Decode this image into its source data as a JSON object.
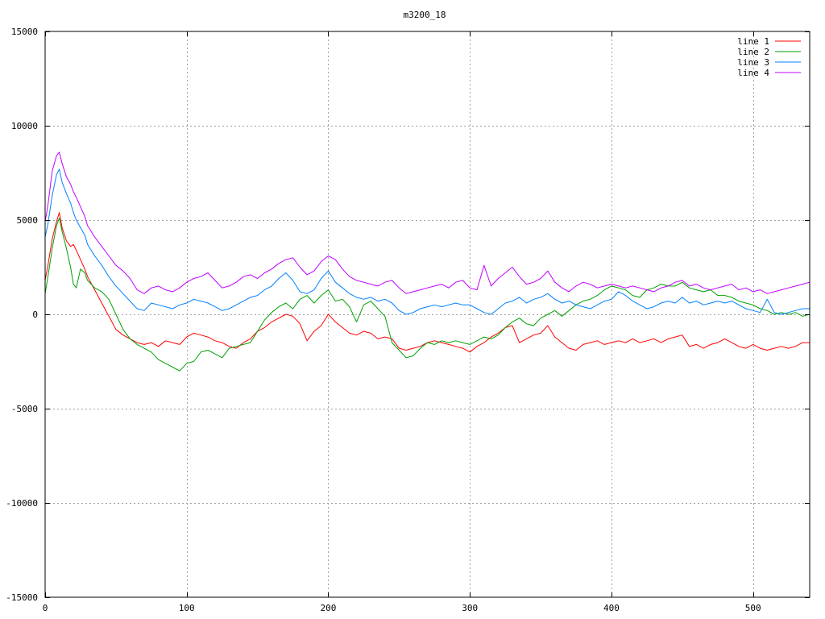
{
  "chart_data": {
    "type": "line",
    "title": "m3200_18",
    "xlabel": "",
    "ylabel": "",
    "xlim": [
      0,
      540
    ],
    "ylim": [
      -15000,
      15000
    ],
    "xticks": [
      0,
      100,
      200,
      300,
      400,
      500
    ],
    "xtick_labels": [
      "0",
      "100",
      "200",
      "300",
      "400",
      "500"
    ],
    "yticks": [
      -15000,
      -10000,
      -5000,
      0,
      5000,
      10000,
      15000
    ],
    "ytick_labels": [
      "-15000",
      "-10000",
      "-5000",
      "0",
      "5000",
      "10000",
      "15000"
    ],
    "grid": true,
    "legend_position": "top-right",
    "series": [
      {
        "name": "line 1",
        "color": "#ff0000",
        "x": [
          0,
          2,
          5,
          8,
          10,
          12,
          15,
          18,
          20,
          22,
          25,
          28,
          30,
          35,
          40,
          45,
          50,
          55,
          60,
          65,
          70,
          75,
          80,
          85,
          90,
          95,
          100,
          105,
          110,
          115,
          120,
          125,
          130,
          135,
          140,
          145,
          150,
          155,
          160,
          165,
          170,
          175,
          180,
          185,
          190,
          195,
          200,
          205,
          210,
          215,
          220,
          225,
          230,
          235,
          240,
          245,
          250,
          255,
          260,
          265,
          270,
          275,
          280,
          285,
          290,
          295,
          300,
          305,
          310,
          315,
          320,
          325,
          330,
          335,
          340,
          345,
          350,
          355,
          360,
          365,
          370,
          375,
          380,
          385,
          390,
          395,
          400,
          405,
          410,
          415,
          420,
          425,
          430,
          435,
          440,
          445,
          450,
          455,
          460,
          465,
          470,
          475,
          480,
          485,
          490,
          495,
          500,
          505,
          510,
          515,
          520,
          525,
          530,
          535,
          540
        ],
        "values": [
          1800,
          2600,
          4000,
          4900,
          5400,
          4600,
          3900,
          3600,
          3700,
          3400,
          2900,
          2400,
          2000,
          1300,
          600,
          -100,
          -800,
          -1100,
          -1300,
          -1500,
          -1600,
          -1500,
          -1700,
          -1400,
          -1500,
          -1600,
          -1200,
          -1000,
          -1100,
          -1200,
          -1400,
          -1500,
          -1700,
          -1800,
          -1500,
          -1300,
          -900,
          -700,
          -400,
          -200,
          0,
          -100,
          -500,
          -1400,
          -900,
          -600,
          0,
          -400,
          -700,
          -1000,
          -1100,
          -900,
          -1000,
          -1300,
          -1200,
          -1300,
          -1800,
          -1900,
          -1800,
          -1700,
          -1500,
          -1400,
          -1500,
          -1600,
          -1700,
          -1800,
          -2000,
          -1700,
          -1500,
          -1200,
          -1000,
          -700,
          -600,
          -1500,
          -1300,
          -1100,
          -1000,
          -600,
          -1200,
          -1500,
          -1800,
          -1900,
          -1600,
          -1500,
          -1400,
          -1600,
          -1500,
          -1400,
          -1500,
          -1300,
          -1500,
          -1400,
          -1300,
          -1500,
          -1300,
          -1200,
          -1100,
          -1700,
          -1600,
          -1800,
          -1600,
          -1500,
          -1300,
          -1500,
          -1700,
          -1800,
          -1600,
          -1800,
          -1900,
          -1800,
          -1700,
          -1800,
          -1700,
          -1500,
          -1500
        ]
      },
      {
        "name": "line 2",
        "color": "#00a000",
        "x": [
          0,
          2,
          5,
          8,
          10,
          12,
          15,
          18,
          20,
          22,
          25,
          28,
          30,
          35,
          40,
          45,
          50,
          55,
          60,
          65,
          70,
          75,
          80,
          85,
          90,
          95,
          100,
          105,
          110,
          115,
          120,
          125,
          130,
          135,
          140,
          145,
          150,
          155,
          160,
          165,
          170,
          175,
          180,
          185,
          190,
          195,
          200,
          205,
          210,
          215,
          220,
          225,
          230,
          235,
          240,
          245,
          250,
          255,
          260,
          265,
          270,
          275,
          280,
          285,
          290,
          295,
          300,
          305,
          310,
          315,
          320,
          325,
          330,
          335,
          340,
          345,
          350,
          355,
          360,
          365,
          370,
          375,
          380,
          385,
          390,
          395,
          400,
          405,
          410,
          415,
          420,
          425,
          430,
          435,
          440,
          445,
          450,
          455,
          460,
          465,
          470,
          475,
          480,
          485,
          490,
          495,
          500,
          505,
          510,
          515,
          520,
          525,
          530,
          535,
          540
        ],
        "values": [
          1100,
          2000,
          3500,
          4700,
          5100,
          4400,
          3500,
          2500,
          1600,
          1400,
          2400,
          2200,
          1800,
          1400,
          1200,
          800,
          0,
          -800,
          -1300,
          -1600,
          -1800,
          -2000,
          -2400,
          -2600,
          -2800,
          -3000,
          -2600,
          -2500,
          -2000,
          -1900,
          -2100,
          -2300,
          -1800,
          -1700,
          -1600,
          -1500,
          -900,
          -300,
          100,
          400,
          600,
          300,
          800,
          1000,
          600,
          1000,
          1300,
          700,
          800,
          400,
          -400,
          500,
          700,
          300,
          -100,
          -1500,
          -1900,
          -2300,
          -2200,
          -1800,
          -1500,
          -1600,
          -1400,
          -1500,
          -1400,
          -1500,
          -1600,
          -1400,
          -1200,
          -1300,
          -1100,
          -700,
          -400,
          -200,
          -500,
          -600,
          -200,
          0,
          200,
          -100,
          200,
          500,
          700,
          800,
          1000,
          1300,
          1500,
          1400,
          1300,
          1000,
          900,
          1300,
          1400,
          1600,
          1500,
          1500,
          1700,
          1400,
          1300,
          1200,
          1300,
          1000,
          1000,
          900,
          700,
          600,
          500,
          300,
          200,
          0,
          100,
          0,
          100,
          -100,
          0
        ]
      },
      {
        "name": "line 3",
        "color": "#0080ff",
        "x": [
          0,
          2,
          5,
          8,
          10,
          12,
          15,
          18,
          20,
          22,
          25,
          28,
          30,
          35,
          40,
          45,
          50,
          55,
          60,
          65,
          70,
          75,
          80,
          85,
          90,
          95,
          100,
          105,
          110,
          115,
          120,
          125,
          130,
          135,
          140,
          145,
          150,
          155,
          160,
          165,
          170,
          175,
          180,
          185,
          190,
          195,
          200,
          205,
          210,
          215,
          220,
          225,
          230,
          235,
          240,
          245,
          250,
          255,
          260,
          265,
          270,
          275,
          280,
          285,
          290,
          295,
          300,
          305,
          310,
          315,
          320,
          325,
          330,
          335,
          340,
          345,
          350,
          355,
          360,
          365,
          370,
          375,
          380,
          385,
          390,
          395,
          400,
          405,
          410,
          415,
          420,
          425,
          430,
          435,
          440,
          445,
          450,
          455,
          460,
          465,
          470,
          475,
          480,
          485,
          490,
          495,
          500,
          505,
          510,
          515,
          520,
          525,
          530,
          535,
          540
        ],
        "values": [
          4100,
          4800,
          6300,
          7400,
          7700,
          7000,
          6400,
          5900,
          5400,
          5000,
          4600,
          4200,
          3700,
          3100,
          2600,
          2000,
          1500,
          1100,
          700,
          300,
          200,
          600,
          500,
          400,
          300,
          500,
          600,
          800,
          700,
          600,
          400,
          200,
          300,
          500,
          700,
          900,
          1000,
          1300,
          1500,
          1900,
          2200,
          1800,
          1200,
          1100,
          1300,
          1900,
          2300,
          1700,
          1400,
          1100,
          900,
          800,
          900,
          700,
          800,
          600,
          200,
          0,
          100,
          300,
          400,
          500,
          400,
          500,
          600,
          500,
          500,
          300,
          100,
          0,
          300,
          600,
          700,
          900,
          600,
          800,
          900,
          1100,
          800,
          600,
          700,
          500,
          400,
          300,
          500,
          700,
          800,
          1200,
          1000,
          700,
          500,
          300,
          400,
          600,
          700,
          600,
          900,
          600,
          700,
          500,
          600,
          700,
          600,
          700,
          500,
          300,
          200,
          100,
          800,
          100,
          0,
          100,
          200,
          300,
          300
        ]
      },
      {
        "name": "line 4",
        "color": "#c000ff",
        "x": [
          0,
          2,
          5,
          8,
          10,
          12,
          15,
          18,
          20,
          22,
          25,
          28,
          30,
          35,
          40,
          45,
          50,
          55,
          60,
          65,
          70,
          75,
          80,
          85,
          90,
          95,
          100,
          105,
          110,
          115,
          120,
          125,
          130,
          135,
          140,
          145,
          150,
          155,
          160,
          165,
          170,
          175,
          180,
          185,
          190,
          195,
          200,
          205,
          210,
          215,
          220,
          225,
          230,
          235,
          240,
          245,
          250,
          255,
          260,
          265,
          270,
          275,
          280,
          285,
          290,
          295,
          300,
          305,
          310,
          315,
          320,
          325,
          330,
          335,
          340,
          345,
          350,
          355,
          360,
          365,
          370,
          375,
          380,
          385,
          390,
          395,
          400,
          405,
          410,
          415,
          420,
          425,
          430,
          435,
          440,
          445,
          450,
          455,
          460,
          465,
          470,
          475,
          480,
          485,
          490,
          495,
          500,
          505,
          510,
          515,
          520,
          525,
          530,
          535,
          540
        ],
        "values": [
          4900,
          5800,
          7600,
          8400,
          8600,
          8000,
          7300,
          6900,
          6500,
          6200,
          5700,
          5200,
          4700,
          4100,
          3600,
          3100,
          2600,
          2300,
          1900,
          1300,
          1100,
          1400,
          1500,
          1300,
          1200,
          1400,
          1700,
          1900,
          2000,
          2200,
          1800,
          1400,
          1500,
          1700,
          2000,
          2100,
          1900,
          2200,
          2400,
          2700,
          2900,
          3000,
          2500,
          2100,
          2300,
          2800,
          3100,
          2900,
          2400,
          2000,
          1800,
          1700,
          1600,
          1500,
          1700,
          1800,
          1400,
          1100,
          1200,
          1300,
          1400,
          1500,
          1600,
          1400,
          1700,
          1800,
          1400,
          1300,
          2600,
          1500,
          1900,
          2200,
          2500,
          2000,
          1600,
          1700,
          1900,
          2300,
          1700,
          1400,
          1200,
          1500,
          1700,
          1600,
          1400,
          1500,
          1600,
          1500,
          1400,
          1500,
          1400,
          1300,
          1200,
          1400,
          1500,
          1700,
          1800,
          1500,
          1600,
          1400,
          1300,
          1400,
          1500,
          1600,
          1300,
          1400,
          1200,
          1300,
          1100,
          1200,
          1300,
          1400,
          1500,
          1600,
          1700
        ]
      }
    ]
  }
}
